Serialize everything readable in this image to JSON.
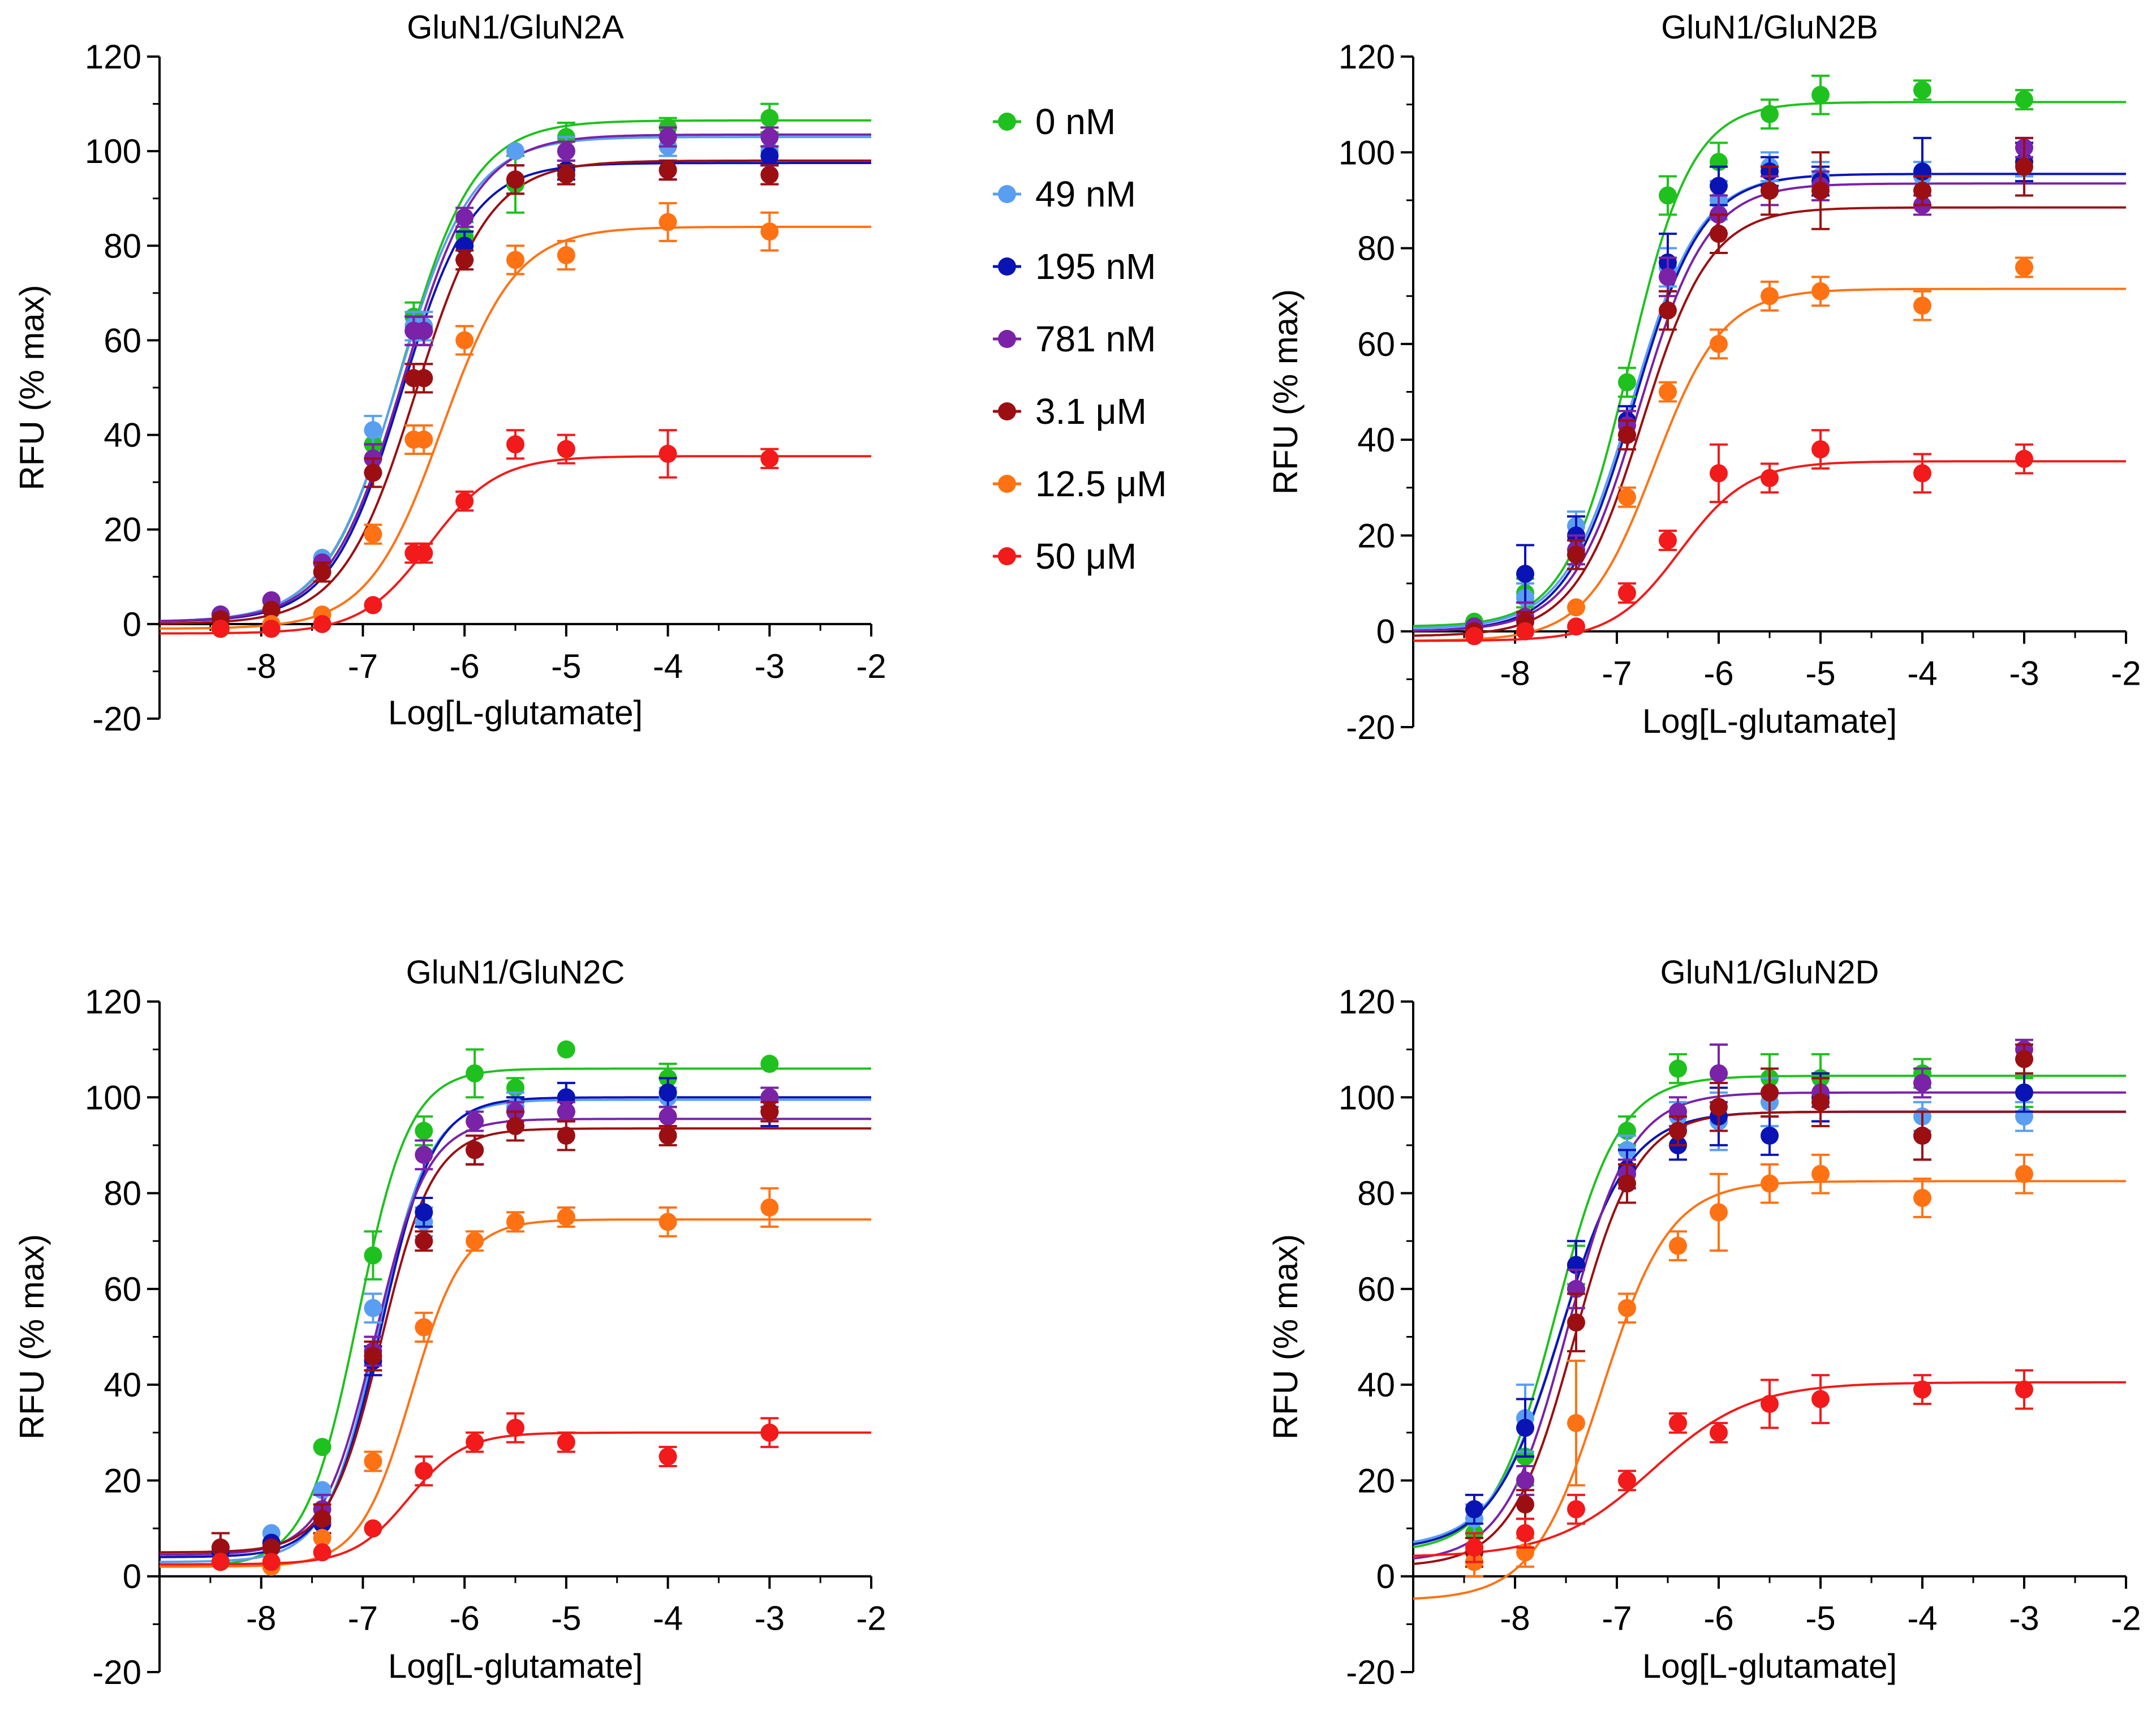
{
  "legend": {
    "items": [
      {
        "label": "0 nM",
        "color": "#1fc11f"
      },
      {
        "label": "49 nM",
        "color": "#5a9ef2"
      },
      {
        "label": "195 nM",
        "color": "#0a14b4"
      },
      {
        "label": "781 nM",
        "color": "#7a22a8"
      },
      {
        "label": "3.1 μM",
        "color": "#9b0f12"
      },
      {
        "label": "12.5 μM",
        "color": "#ff7214"
      },
      {
        "label": "50 μM",
        "color": "#f21a1a"
      }
    ]
  },
  "chart_data": [
    {
      "type": "scatter",
      "title": "GluN1/GluN2A",
      "xlabel": "Log[L-glutamate]",
      "ylabel": "RFU (% max)",
      "xlim": [
        -9.0,
        -2.0
      ],
      "ylim": [
        -20,
        120
      ],
      "xticks": [
        -8,
        -7,
        -6,
        -5,
        -4,
        -3,
        -2
      ],
      "yticks": [
        -20,
        0,
        20,
        40,
        60,
        80,
        100,
        120
      ],
      "x": [
        -8.4,
        -7.9,
        -7.4,
        -6.9,
        -6.5,
        -6.4,
        -6.0,
        -5.5,
        -5.0,
        -4.0,
        -3.0
      ],
      "series": [
        {
          "name": "0 nM",
          "values": [
            2,
            5,
            13,
            38,
            65,
            62,
            82,
            93,
            103,
            105,
            107
          ],
          "errors": [
            0,
            0,
            0,
            3,
            3,
            3,
            3,
            6,
            3,
            2,
            3
          ],
          "fit": {
            "bottom": 0.5,
            "top": 106.5,
            "logec50": -6.63,
            "hill": 1.2
          }
        },
        {
          "name": "49 nM",
          "values": [
            2,
            5,
            14,
            41,
            63,
            63,
            80,
            100,
            100,
            101,
            100
          ],
          "errors": [
            0,
            0,
            0,
            3,
            3,
            3,
            3,
            0,
            3,
            2,
            3
          ],
          "fit": {
            "bottom": 0.5,
            "top": 103,
            "logec50": -6.65,
            "hill": 1.2
          }
        },
        {
          "name": "195 nM",
          "values": [
            2,
            5,
            13,
            35,
            62,
            62,
            80,
            94,
            96,
            96,
            99
          ],
          "errors": [
            0,
            0,
            0,
            3,
            3,
            3,
            3,
            3,
            2,
            2,
            2
          ],
          "fit": {
            "bottom": 0.5,
            "top": 97.5,
            "logec50": -6.62,
            "hill": 1.25
          }
        },
        {
          "name": "781 nM",
          "values": [
            2,
            5,
            13,
            35,
            62,
            62,
            86,
            94,
            100,
            103,
            103
          ],
          "errors": [
            0,
            0,
            0,
            3,
            3,
            3,
            2,
            3,
            2,
            2,
            2
          ],
          "fit": {
            "bottom": 0.5,
            "top": 103.5,
            "logec50": -6.6,
            "hill": 1.2
          }
        },
        {
          "name": "3.1 μM",
          "values": [
            1,
            3,
            11,
            32,
            52,
            52,
            77,
            94,
            95,
            96,
            95
          ],
          "errors": [
            0,
            0,
            2,
            3,
            3,
            3,
            2,
            3,
            2,
            2,
            2
          ],
          "fit": {
            "bottom": 0,
            "top": 98,
            "logec50": -6.48,
            "hill": 1.2
          }
        },
        {
          "name": "12.5 μM",
          "values": [
            -1,
            0,
            2,
            19,
            39,
            39,
            60,
            77,
            78,
            85,
            83
          ],
          "errors": [
            0,
            0,
            0,
            2,
            3,
            3,
            3,
            3,
            3,
            4,
            4
          ],
          "fit": {
            "bottom": -1,
            "top": 84,
            "logec50": -6.22,
            "hill": 1.2
          }
        },
        {
          "name": "50 μM",
          "values": [
            -1,
            -1,
            0,
            4,
            15,
            15,
            26,
            38,
            37,
            36,
            35
          ],
          "errors": [
            0,
            0,
            0,
            0,
            2,
            2,
            2,
            3,
            3,
            5,
            2
          ],
          "fit": {
            "bottom": -2,
            "top": 35.5,
            "logec50": -6.35,
            "hill": 1.3
          }
        }
      ]
    },
    {
      "type": "scatter",
      "title": "GluN1/GluN2B",
      "xlabel": "Log[L-glutamate]",
      "ylabel": "RFU (% max)",
      "xlim": [
        -9.0,
        -2.0
      ],
      "ylim": [
        -20,
        120
      ],
      "xticks": [
        -8,
        -7,
        -6,
        -5,
        -4,
        -3,
        -2
      ],
      "yticks": [
        -20,
        0,
        20,
        40,
        60,
        80,
        100,
        120
      ],
      "x": [
        -8.4,
        -7.9,
        -7.4,
        -6.9,
        -6.5,
        -6.0,
        -5.5,
        -5.0,
        -4.0,
        -3.0
      ],
      "series": [
        {
          "name": "0 nM",
          "values": [
            2,
            8,
            20,
            52,
            91,
            98,
            108,
            112,
            113,
            111
          ],
          "errors": [
            0,
            3,
            4,
            3,
            4,
            4,
            3,
            4,
            2,
            2
          ],
          "fit": {
            "bottom": 1,
            "top": 110.5,
            "logec50": -6.88,
            "hill": 1.4
          }
        },
        {
          "name": "49 nM",
          "values": [
            1,
            7,
            22,
            44,
            76,
            90,
            97,
            95,
            95,
            98
          ],
          "errors": [
            0,
            3,
            3,
            3,
            4,
            4,
            3,
            3,
            3,
            3
          ],
          "fit": {
            "bottom": 0.5,
            "top": 95.5,
            "logec50": -6.85,
            "hill": 1.3
          }
        },
        {
          "name": "195 nM",
          "values": [
            1,
            12,
            20,
            44,
            77,
            93,
            96,
            94,
            96,
            98
          ],
          "errors": [
            0,
            6,
            4,
            3,
            6,
            4,
            3,
            3,
            7,
            4
          ],
          "fit": {
            "bottom": 0,
            "top": 95.5,
            "logec50": -6.83,
            "hill": 1.3
          }
        },
        {
          "name": "781 nM",
          "values": [
            1,
            3,
            17,
            43,
            74,
            87,
            92,
            93,
            89,
            101
          ],
          "errors": [
            0,
            3,
            3,
            3,
            4,
            4,
            3,
            3,
            2,
            2
          ],
          "fit": {
            "bottom": 0,
            "top": 93.5,
            "logec50": -6.78,
            "hill": 1.3
          }
        },
        {
          "name": "3.1 μM",
          "values": [
            0,
            2,
            16,
            41,
            67,
            83,
            92,
            92,
            92,
            97
          ],
          "errors": [
            0,
            2,
            3,
            3,
            4,
            4,
            5,
            8,
            3,
            6
          ],
          "fit": {
            "bottom": -1,
            "top": 88.5,
            "logec50": -6.75,
            "hill": 1.3
          }
        },
        {
          "name": "12.5 μM",
          "values": [
            -1,
            0,
            5,
            28,
            50,
            60,
            70,
            71,
            68,
            76
          ],
          "errors": [
            0,
            0,
            0,
            2,
            2,
            3,
            3,
            3,
            3,
            2
          ],
          "fit": {
            "bottom": -2,
            "top": 71.5,
            "logec50": -6.63,
            "hill": 1.3
          }
        },
        {
          "name": "50 μM",
          "values": [
            -1,
            0,
            1,
            8,
            19,
            33,
            32,
            38,
            33,
            36
          ],
          "errors": [
            0,
            0,
            0,
            2,
            2,
            6,
            3,
            4,
            4,
            3
          ],
          "fit": {
            "bottom": -2,
            "top": 35.5,
            "logec50": -6.38,
            "hill": 1.3
          }
        }
      ]
    },
    {
      "type": "scatter",
      "title": "GluN1/GluN2C",
      "xlabel": "Log[L-glutamate]",
      "ylabel": "RFU (% max)",
      "xlim": [
        -9.0,
        -2.0
      ],
      "ylim": [
        -20,
        120
      ],
      "xticks": [
        -8,
        -7,
        -6,
        -5,
        -4,
        -3,
        -2
      ],
      "yticks": [
        -20,
        0,
        20,
        40,
        60,
        80,
        100,
        120
      ],
      "x": [
        -8.4,
        -7.9,
        -7.4,
        -6.9,
        -6.4,
        -5.9,
        -5.5,
        -5.0,
        -4.0,
        -3.0
      ],
      "series": [
        {
          "name": "0 nM",
          "values": [
            3,
            6,
            27,
            67,
            93,
            105,
            102,
            110,
            104,
            107
          ],
          "errors": [
            0,
            0,
            0,
            5,
            3,
            5,
            2,
            0,
            3,
            0
          ],
          "fit": {
            "bottom": 2,
            "top": 106,
            "logec50": -7.05,
            "hill": 1.7
          }
        },
        {
          "name": "49 nM",
          "values": [
            5,
            9,
            18,
            56,
            74,
            89,
            98,
            100,
            100,
            97
          ],
          "errors": [
            0,
            0,
            0,
            3,
            3,
            3,
            3,
            3,
            2,
            3
          ],
          "fit": {
            "bottom": 3,
            "top": 99.5,
            "logec50": -6.85,
            "hill": 1.7
          }
        },
        {
          "name": "195 nM",
          "values": [
            5,
            7,
            11,
            45,
            76,
            89,
            97,
            100,
            101,
            97
          ],
          "errors": [
            0,
            0,
            0,
            3,
            3,
            3,
            3,
            3,
            3,
            3
          ],
          "fit": {
            "bottom": 4,
            "top": 100,
            "logec50": -6.82,
            "hill": 1.7
          }
        },
        {
          "name": "781 nM",
          "values": [
            6,
            6,
            14,
            47,
            88,
            95,
            97,
            97,
            96,
            100
          ],
          "errors": [
            3,
            0,
            3,
            3,
            3,
            2,
            2,
            2,
            2,
            2
          ],
          "fit": {
            "bottom": 4.5,
            "top": 95.5,
            "logec50": -6.88,
            "hill": 1.7
          }
        },
        {
          "name": "3.1 μM",
          "values": [
            6,
            6,
            12,
            46,
            70,
            89,
            94,
            92,
            92,
            97
          ],
          "errors": [
            3,
            0,
            3,
            3,
            2,
            3,
            3,
            3,
            2,
            2
          ],
          "fit": {
            "bottom": 5,
            "top": 93.5,
            "logec50": -6.82,
            "hill": 1.7
          }
        },
        {
          "name": "12.5 μM",
          "values": [
            3,
            2,
            8,
            24,
            52,
            70,
            74,
            75,
            74,
            77
          ],
          "errors": [
            0,
            0,
            0,
            2,
            3,
            2,
            2,
            2,
            3,
            4
          ],
          "fit": {
            "bottom": 2,
            "top": 74.5,
            "logec50": -6.52,
            "hill": 1.7
          }
        },
        {
          "name": "50 μM",
          "values": [
            3,
            3,
            5,
            10,
            22,
            28,
            31,
            28,
            25,
            30
          ],
          "errors": [
            0,
            0,
            0,
            0,
            3,
            2,
            3,
            2,
            2,
            3
          ],
          "fit": {
            "bottom": 2.5,
            "top": 30,
            "logec50": -6.55,
            "hill": 1.6
          }
        }
      ]
    },
    {
      "type": "scatter",
      "title": "GluN1/GluN2D",
      "xlabel": "Log[L-glutamate]",
      "ylabel": "RFU (% max)",
      "xlim": [
        -9.0,
        -2.0
      ],
      "ylim": [
        -20,
        120
      ],
      "xticks": [
        -8,
        -7,
        -6,
        -5,
        -4,
        -3,
        -2
      ],
      "yticks": [
        -20,
        0,
        20,
        40,
        60,
        80,
        100,
        120
      ],
      "x": [
        -8.4,
        -7.9,
        -7.4,
        -6.9,
        -6.4,
        -6.0,
        -5.5,
        -5.0,
        -4.0,
        -3.0
      ],
      "series": [
        {
          "name": "0 nM",
          "values": [
            9,
            25,
            65,
            93,
            106,
            105,
            104,
            104,
            105,
            101
          ],
          "errors": [
            3,
            6,
            4,
            3,
            3,
            6,
            5,
            5,
            3,
            3
          ],
          "fit": {
            "bottom": 5,
            "top": 104.5,
            "logec50": -7.6,
            "hill": 1.4
          }
        },
        {
          "name": "49 nM",
          "values": [
            12,
            33,
            60,
            89,
            96,
            95,
            99,
            100,
            96,
            96
          ],
          "errors": [
            3,
            7,
            4,
            3,
            3,
            6,
            5,
            5,
            3,
            3
          ],
          "fit": {
            "bottom": 6,
            "top": 97,
            "logec50": -7.55,
            "hill": 1.3
          }
        },
        {
          "name": "195 nM",
          "values": [
            14,
            31,
            65,
            85,
            90,
            96,
            92,
            100,
            92,
            101
          ],
          "errors": [
            3,
            6,
            5,
            4,
            3,
            6,
            4,
            5,
            5,
            4
          ],
          "fit": {
            "bottom": 5.5,
            "top": 97,
            "logec50": -7.55,
            "hill": 1.3
          }
        },
        {
          "name": "781 nM",
          "values": [
            6,
            20,
            60,
            84,
            97,
            105,
            101,
            101,
            103,
            110
          ],
          "errors": [
            3,
            3,
            4,
            3,
            3,
            6,
            5,
            3,
            3,
            2
          ],
          "fit": {
            "bottom": 3,
            "top": 101,
            "logec50": -7.48,
            "hill": 1.4
          }
        },
        {
          "name": "3.1 μM",
          "values": [
            5,
            15,
            53,
            82,
            93,
            98,
            101,
            99,
            92,
            108
          ],
          "errors": [
            3,
            3,
            6,
            4,
            3,
            5,
            5,
            5,
            5,
            3
          ],
          "fit": {
            "bottom": 2,
            "top": 97,
            "logec50": -7.42,
            "hill": 1.4
          }
        },
        {
          "name": "12.5 μM",
          "values": [
            3,
            5,
            32,
            56,
            69,
            76,
            82,
            84,
            79,
            84
          ],
          "errors": [
            3,
            3,
            13,
            3,
            3,
            8,
            4,
            4,
            4,
            4
          ],
          "fit": {
            "bottom": -5,
            "top": 82.5,
            "logec50": -7.15,
            "hill": 1.3
          }
        },
        {
          "name": "50 μM",
          "values": [
            6,
            9,
            14,
            20,
            32,
            30,
            36,
            37,
            39,
            39
          ],
          "errors": [
            3,
            3,
            3,
            2,
            2,
            2,
            5,
            5,
            3,
            4
          ],
          "fit": {
            "bottom": 4,
            "top": 40.5,
            "logec50": -6.65,
            "hill": 0.9
          }
        }
      ]
    }
  ]
}
